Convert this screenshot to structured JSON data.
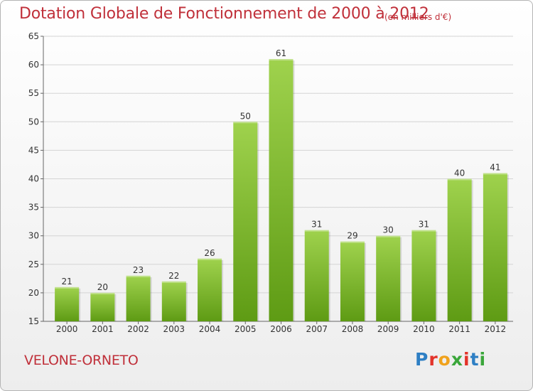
{
  "title": "Dotation Globale de Fonctionnement de 2000 à 2012",
  "unit_note": "(en milliers d'€)",
  "place": "VELONE-ORNETO",
  "logo": {
    "letters": [
      {
        "ch": "P",
        "color": "#2e7fc4"
      },
      {
        "ch": "r",
        "color": "#e3332a"
      },
      {
        "ch": "o",
        "color": "#f0a21c"
      },
      {
        "ch": "x",
        "color": "#3aa63a"
      },
      {
        "ch": "i",
        "color": "#e3332a"
      },
      {
        "ch": "t",
        "color": "#2e7fc4"
      },
      {
        "ch": "i",
        "color": "#3aa63a"
      }
    ]
  },
  "colors": {
    "title": "#c0303a",
    "bar_top": "#9fd24d",
    "bar_bottom": "#5e9b14",
    "grid": "#d4d4d4"
  },
  "chart_data": {
    "type": "bar",
    "categories": [
      "2000",
      "2001",
      "2002",
      "2003",
      "2004",
      "2005",
      "2006",
      "2007",
      "2008",
      "2009",
      "2010",
      "2011",
      "2012"
    ],
    "values": [
      21,
      20,
      23,
      22,
      26,
      50,
      61,
      31,
      29,
      30,
      31,
      40,
      41
    ],
    "ylim": [
      15,
      65
    ],
    "yticks": [
      15,
      20,
      25,
      30,
      35,
      40,
      45,
      50,
      55,
      60,
      65
    ],
    "grid": true,
    "legend": "none"
  }
}
